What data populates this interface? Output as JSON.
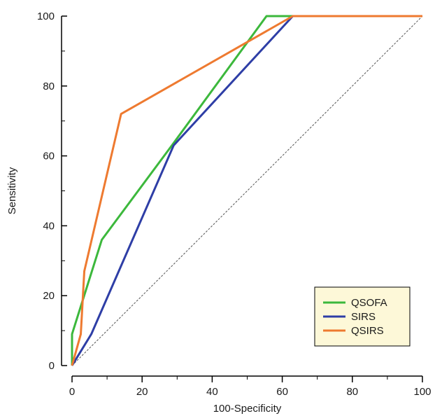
{
  "chart_data": {
    "type": "line",
    "xlabel": "100-Specificity",
    "ylabel": "Sensitivity",
    "xlim": [
      0,
      100
    ],
    "ylim": [
      0,
      100
    ],
    "x_ticks": [
      "0",
      "20",
      "40",
      "60",
      "80",
      "100"
    ],
    "y_ticks": [
      "0",
      "20",
      "40",
      "60",
      "80",
      "100"
    ],
    "grid": false,
    "legend_position": "bottom-right",
    "legend_background": "#fdf8d8",
    "reference_line": {
      "x": [
        0,
        100
      ],
      "y": [
        0,
        100
      ],
      "style": "dashed",
      "color": "#555555"
    },
    "series": [
      {
        "name": "QSOFA",
        "color": "#3cb83c",
        "x": [
          0,
          0,
          8.5,
          28.5,
          55.5,
          63,
          100
        ],
        "y": [
          0,
          9,
          36,
          63,
          100,
          100,
          100
        ]
      },
      {
        "name": "SIRS",
        "color": "#2e3ea6",
        "x": [
          0,
          5.5,
          29,
          63,
          100
        ],
        "y": [
          0,
          9,
          63,
          100,
          100
        ]
      },
      {
        "name": "QSIRS",
        "color": "#ee7a30",
        "x": [
          0,
          2.5,
          3,
          3.5,
          14,
          63,
          100
        ],
        "y": [
          0,
          9,
          18,
          27,
          72,
          100,
          100
        ]
      }
    ]
  }
}
